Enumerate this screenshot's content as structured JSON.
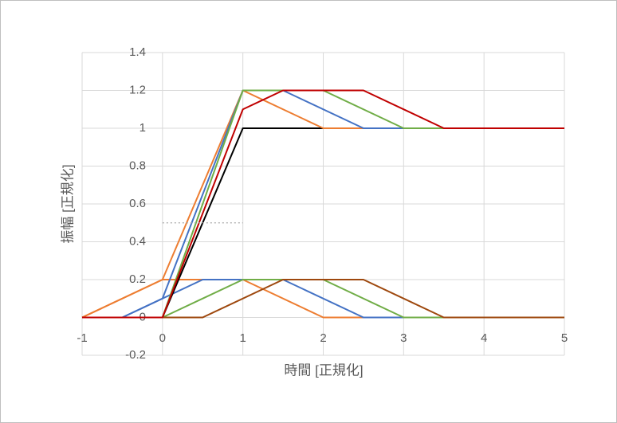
{
  "chart_data": {
    "type": "scatter-line",
    "x_label": "時間 [正規化]",
    "y_label": "振幅 [正規化]",
    "xlim": [
      -1,
      5
    ],
    "xticks": [
      -1,
      0,
      1,
      2,
      3,
      4,
      5
    ],
    "ylim": [
      -0.2,
      1.4
    ],
    "yticks": [
      -0.2,
      0,
      0.2,
      0.4,
      0.6,
      0.8,
      1,
      1.2,
      1.4
    ],
    "grid": true,
    "series": [
      {
        "color": "#ed7d31",
        "x": [
          -1,
          0,
          1,
          2,
          5
        ],
        "values": [
          0,
          0.2,
          0.2,
          0,
          0
        ]
      },
      {
        "color": "#4472c4",
        "x": [
          -1,
          -0.5,
          0.5,
          1.5,
          2.5,
          5
        ],
        "values": [
          0,
          0,
          0.2,
          0.2,
          0,
          0
        ]
      },
      {
        "color": "#70ad47",
        "x": [
          -1,
          0,
          1,
          2,
          3,
          5
        ],
        "values": [
          0,
          0,
          0.2,
          0.2,
          0,
          0
        ]
      },
      {
        "color": "#9e480e",
        "x": [
          -1,
          0.5,
          1.5,
          2.5,
          3.5,
          5
        ],
        "values": [
          0,
          0,
          0.2,
          0.2,
          0,
          0
        ]
      },
      {
        "color": "#000000",
        "x": [
          -1,
          0,
          1,
          5
        ],
        "values": [
          0,
          0,
          1,
          1
        ]
      },
      {
        "color": "#ed7d31",
        "x": [
          -1,
          0,
          1,
          2,
          5
        ],
        "values": [
          0,
          0.2,
          1.2,
          1,
          1
        ]
      },
      {
        "color": "#4472c4",
        "x": [
          -1,
          -0.5,
          0,
          1,
          1.5,
          2.5,
          5
        ],
        "values": [
          0,
          0,
          0.1,
          1.2,
          1.2,
          1,
          1
        ]
      },
      {
        "color": "#70ad47",
        "x": [
          -1,
          0,
          1,
          2,
          3,
          5
        ],
        "values": [
          0,
          0,
          1.2,
          1.2,
          1,
          1
        ]
      },
      {
        "color": "#c00000",
        "x": [
          -1,
          0,
          1,
          1.5,
          2.5,
          3.5,
          5
        ],
        "values": [
          0,
          0,
          1.1,
          1.2,
          1.2,
          1,
          1
        ]
      },
      {
        "color": "#a6a6a6",
        "dashed": true,
        "x": [
          0,
          1
        ],
        "values": [
          0.5,
          0.5
        ]
      }
    ]
  }
}
